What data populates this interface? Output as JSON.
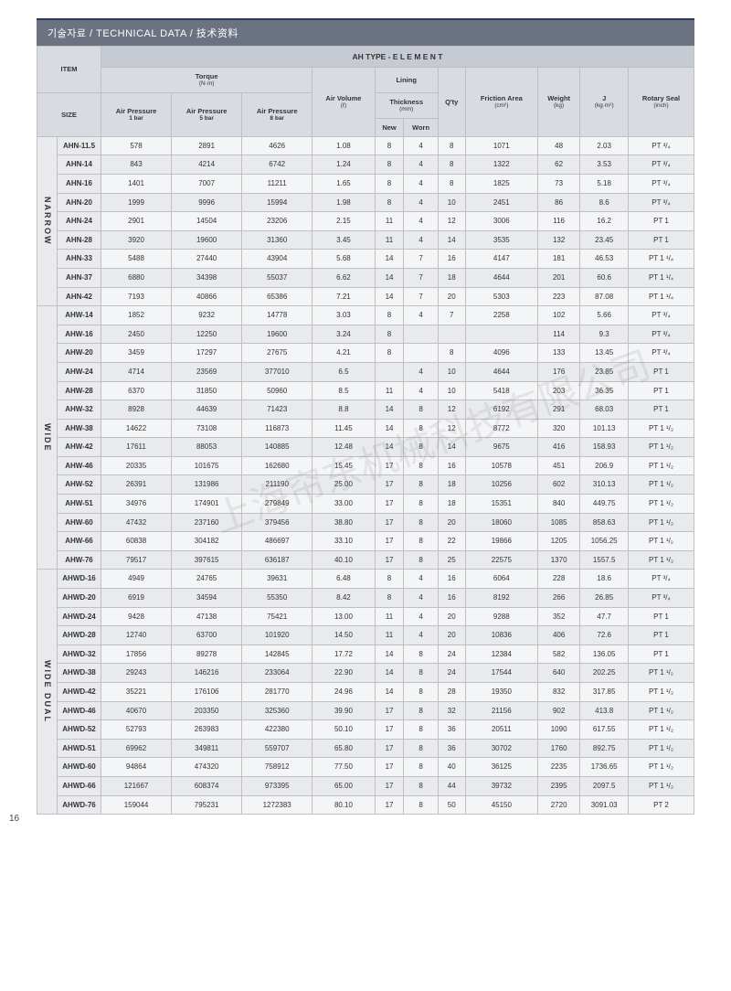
{
  "page_number": "16",
  "title": "기술자료 / TECHNICAL DATA / 技术资料",
  "watermark": "上海帘东机械科技有限公司",
  "table": {
    "header": {
      "item": "ITEM",
      "size": "SIZE",
      "main": "AH TYPE - E L E M E N T",
      "torque": "Torque",
      "torque_unit": "(N·m)",
      "lining": "Lining",
      "air_volume": "Air Volume",
      "air_volume_unit": "(ℓ)",
      "thickness": "Thickness",
      "thickness_unit": "(mm)",
      "qty": "Q'ty",
      "friction": "Friction Area",
      "friction_unit": "(cm²)",
      "weight": "Weight",
      "weight_unit": "(kg)",
      "j": "J",
      "j_unit": "(kg·m²)",
      "rotary": "Rotary Seal",
      "rotary_unit": "(inch)",
      "ap1": "Air Pressure",
      "ap1_sub": "1 bar",
      "ap5": "Air Pressure",
      "ap5_sub": "5 bar",
      "ap8": "Air Pressure",
      "ap8_sub": "8 bar",
      "new": "New",
      "worn": "Worn"
    },
    "groups": [
      {
        "name": "NARROW",
        "rows": [
          {
            "item": "AHN-11.5",
            "v": [
              "578",
              "2891",
              "4626",
              "1.08",
              "8",
              "4",
              "8",
              "1071",
              "48",
              "2.03",
              "PT ³/₄"
            ]
          },
          {
            "item": "AHN-14",
            "v": [
              "843",
              "4214",
              "6742",
              "1.24",
              "8",
              "4",
              "8",
              "1322",
              "62",
              "3.53",
              "PT ³/₄"
            ]
          },
          {
            "item": "AHN-16",
            "v": [
              "1401",
              "7007",
              "11211",
              "1.65",
              "8",
              "4",
              "8",
              "1825",
              "73",
              "5.18",
              "PT ³/₄"
            ]
          },
          {
            "item": "AHN-20",
            "v": [
              "1999",
              "9996",
              "15994",
              "1.98",
              "8",
              "4",
              "10",
              "2451",
              "86",
              "8.6",
              "PT ³/₄"
            ]
          },
          {
            "item": "AHN-24",
            "v": [
              "2901",
              "14504",
              "23206",
              "2.15",
              "11",
              "4",
              "12",
              "3006",
              "116",
              "16.2",
              "PT 1"
            ]
          },
          {
            "item": "AHN-28",
            "v": [
              "3920",
              "19600",
              "31360",
              "3.45",
              "11",
              "4",
              "14",
              "3535",
              "132",
              "23.45",
              "PT 1"
            ]
          },
          {
            "item": "AHN-33",
            "v": [
              "5488",
              "27440",
              "43904",
              "5.68",
              "14",
              "7",
              "16",
              "4147",
              "181",
              "46.53",
              "PT 1 ¹/₄"
            ]
          },
          {
            "item": "AHN-37",
            "v": [
              "6880",
              "34398",
              "55037",
              "6.62",
              "14",
              "7",
              "18",
              "4644",
              "201",
              "60.6",
              "PT 1 ¹/₄"
            ]
          },
          {
            "item": "AHN-42",
            "v": [
              "7193",
              "40866",
              "65386",
              "7.21",
              "14",
              "7",
              "20",
              "5303",
              "223",
              "87.08",
              "PT 1 ¹/₄"
            ]
          }
        ]
      },
      {
        "name": "WIDE",
        "rows": [
          {
            "item": "AHW-14",
            "v": [
              "1852",
              "9232",
              "14778",
              "3.03",
              "8",
              "4",
              "7",
              "2258",
              "102",
              "5.66",
              "PT ³/₄"
            ]
          },
          {
            "item": "AHW-16",
            "v": [
              "2450",
              "12250",
              "19600",
              "3.24",
              "8",
              "",
              "",
              "",
              "114",
              "9.3",
              "PT ³/₄"
            ]
          },
          {
            "item": "AHW-20",
            "v": [
              "3459",
              "17297",
              "27675",
              "4.21",
              "8",
              "",
              "8",
              "4096",
              "133",
              "13.45",
              "PT ³/₄"
            ]
          },
          {
            "item": "AHW-24",
            "v": [
              "4714",
              "23569",
              "377010",
              "6.5",
              "",
              "4",
              "10",
              "4644",
              "176",
              "23.85",
              "PT 1"
            ]
          },
          {
            "item": "AHW-28",
            "v": [
              "6370",
              "31850",
              "50960",
              "8.5",
              "11",
              "4",
              "10",
              "5418",
              "203",
              "36.35",
              "PT 1"
            ]
          },
          {
            "item": "AHW-32",
            "v": [
              "8928",
              "44639",
              "71423",
              "8.8",
              "14",
              "8",
              "12",
              "6192",
              "291",
              "68.03",
              "PT 1"
            ]
          },
          {
            "item": "AHW-38",
            "v": [
              "14622",
              "73108",
              "116873",
              "11.45",
              "14",
              "8",
              "12",
              "8772",
              "320",
              "101.13",
              "PT 1 ¹/₂"
            ]
          },
          {
            "item": "AHW-42",
            "v": [
              "17611",
              "88053",
              "140885",
              "12.48",
              "14",
              "8",
              "14",
              "9675",
              "416",
              "158.93",
              "PT 1 ¹/₂"
            ]
          },
          {
            "item": "AHW-46",
            "v": [
              "20335",
              "101675",
              "162680",
              "15.45",
              "17",
              "8",
              "16",
              "10578",
              "451",
              "206.9",
              "PT 1 ¹/₂"
            ]
          },
          {
            "item": "AHW-52",
            "v": [
              "26391",
              "131986",
              "211190",
              "25.00",
              "17",
              "8",
              "18",
              "10256",
              "602",
              "310.13",
              "PT 1 ¹/₂"
            ]
          },
          {
            "item": "AHW-51",
            "v": [
              "34976",
              "174901",
              "279849",
              "33.00",
              "17",
              "8",
              "18",
              "15351",
              "840",
              "449.75",
              "PT 1 ¹/₂"
            ]
          },
          {
            "item": "AHW-60",
            "v": [
              "47432",
              "237160",
              "379456",
              "38.80",
              "17",
              "8",
              "20",
              "18060",
              "1085",
              "858.63",
              "PT 1 ¹/₂"
            ]
          },
          {
            "item": "AHW-66",
            "v": [
              "60838",
              "304182",
              "486697",
              "33.10",
              "17",
              "8",
              "22",
              "19866",
              "1205",
              "1056.25",
              "PT 1 ¹/₂"
            ]
          },
          {
            "item": "AHW-76",
            "v": [
              "79517",
              "397615",
              "636187",
              "40.10",
              "17",
              "8",
              "25",
              "22575",
              "1370",
              "1557.5",
              "PT 1 ¹/₂"
            ]
          }
        ]
      },
      {
        "name": "WIDE DUAL",
        "rows": [
          {
            "item": "AHWD-16",
            "v": [
              "4949",
              "24765",
              "39631",
              "6.48",
              "8",
              "4",
              "16",
              "6064",
              "228",
              "18.6",
              "PT ³/₄"
            ]
          },
          {
            "item": "AHWD-20",
            "v": [
              "6919",
              "34594",
              "55350",
              "8.42",
              "8",
              "4",
              "16",
              "8192",
              "266",
              "26.85",
              "PT ³/₄"
            ]
          },
          {
            "item": "AHWD-24",
            "v": [
              "9428",
              "47138",
              "75421",
              "13.00",
              "11",
              "4",
              "20",
              "9288",
              "352",
              "47.7",
              "PT 1"
            ]
          },
          {
            "item": "AHWD-28",
            "v": [
              "12740",
              "63700",
              "101920",
              "14.50",
              "11",
              "4",
              "20",
              "10836",
              "406",
              "72.6",
              "PT 1"
            ]
          },
          {
            "item": "AHWD-32",
            "v": [
              "17856",
              "89278",
              "142845",
              "17.72",
              "14",
              "8",
              "24",
              "12384",
              "582",
              "136.05",
              "PT 1"
            ]
          },
          {
            "item": "AHWD-38",
            "v": [
              "29243",
              "146216",
              "233064",
              "22.90",
              "14",
              "8",
              "24",
              "17544",
              "640",
              "202.25",
              "PT 1 ¹/₂"
            ]
          },
          {
            "item": "AHWD-42",
            "v": [
              "35221",
              "176106",
              "281770",
              "24.96",
              "14",
              "8",
              "28",
              "19350",
              "832",
              "317.85",
              "PT 1 ¹/₂"
            ]
          },
          {
            "item": "AHWD-46",
            "v": [
              "40670",
              "203350",
              "325360",
              "39.90",
              "17",
              "8",
              "32",
              "21156",
              "902",
              "413.8",
              "PT 1 ¹/₂"
            ]
          },
          {
            "item": "AHWD-52",
            "v": [
              "52793",
              "263983",
              "422380",
              "50.10",
              "17",
              "8",
              "36",
              "20511",
              "1090",
              "617.55",
              "PT 1 ¹/₂"
            ]
          },
          {
            "item": "AHWD-51",
            "v": [
              "69962",
              "349811",
              "559707",
              "65.80",
              "17",
              "8",
              "36",
              "30702",
              "1760",
              "892.75",
              "PT 1 ¹/₂"
            ]
          },
          {
            "item": "AHWD-60",
            "v": [
              "94864",
              "474320",
              "758912",
              "77.50",
              "17",
              "8",
              "40",
              "36125",
              "2235",
              "1736.65",
              "PT 1 ¹/₂"
            ]
          },
          {
            "item": "AHWD-66",
            "v": [
              "121667",
              "608374",
              "973395",
              "65.00",
              "17",
              "8",
              "44",
              "39732",
              "2395",
              "2097.5",
              "PT 1 ¹/₂"
            ]
          },
          {
            "item": "AHWD-76",
            "v": [
              "159044",
              "795231",
              "1272383",
              "80.10",
              "17",
              "8",
              "50",
              "45150",
              "2720",
              "3091.03",
              "PT 2"
            ]
          }
        ]
      }
    ]
  }
}
